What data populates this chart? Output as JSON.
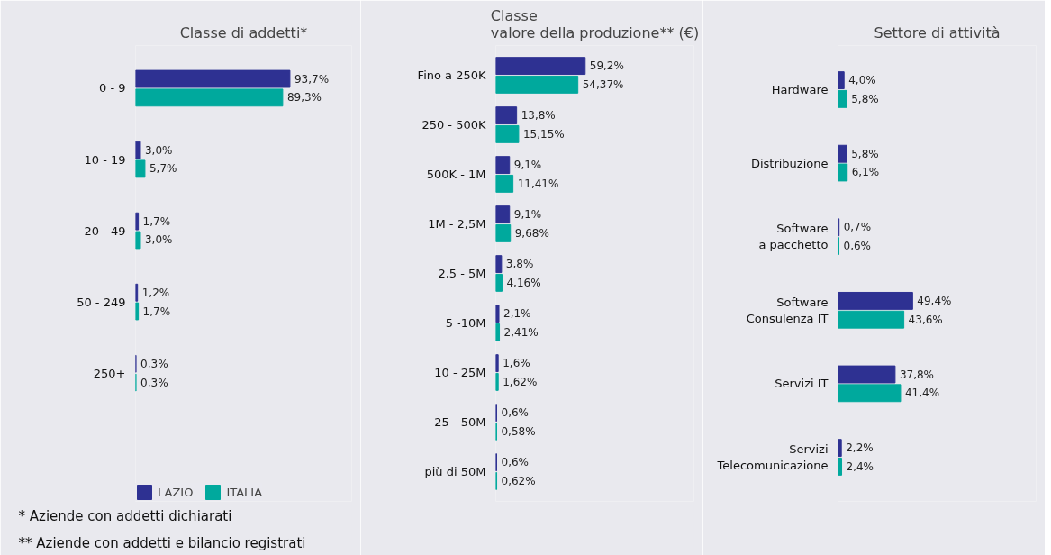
{
  "chart_data": [
    {
      "type": "bar",
      "orientation": "horizontal",
      "title": "Classe di addetti*",
      "categories": [
        "0 - 9",
        "10 - 19",
        "20 - 49",
        "50 - 249",
        "250+"
      ],
      "series": [
        {
          "name": "LAZIO",
          "color": "#2e3192",
          "values": [
            93.7,
            3.0,
            1.7,
            1.2,
            0.3
          ],
          "value_labels": [
            "93,7%",
            "3,0%",
            "1,7%",
            "1,2%",
            "0,3%"
          ]
        },
        {
          "name": "ITALIA",
          "color": "#00a99d",
          "values": [
            89.3,
            5.7,
            3.0,
            1.7,
            0.3
          ],
          "value_labels": [
            "89,3%",
            "5,7%",
            "3,0%",
            "1,7%",
            "0,3%"
          ]
        }
      ],
      "legend": "bottom left",
      "grid": false,
      "tick_labels": "y",
      "annotations": [
        "* Aziende con addetti dichiarati",
        "** Aziende con addetti e bilancio registrati"
      ]
    },
    {
      "type": "bar",
      "orientation": "horizontal",
      "title": "Classe\nvalore della produzione** (€)",
      "categories": [
        "Fino a 250K",
        "250 - 500K",
        "500K - 1M",
        "1M - 2,5M",
        "2,5 - 5M",
        "5 -10M",
        "10 - 25M",
        "25 - 50M",
        "più di 50M"
      ],
      "series": [
        {
          "color": "#2e3192",
          "values": [
            59.2,
            13.8,
            9.1,
            9.1,
            3.8,
            2.1,
            1.6,
            0.6,
            0.6
          ],
          "value_labels": [
            "59,2%",
            "13,8%",
            "9,1%",
            "9,1%",
            "3,8%",
            "2,1%",
            "1,6%",
            "0,6%",
            "0,6%"
          ]
        },
        {
          "color": "#00a99d",
          "values": [
            54.37,
            15.15,
            11.41,
            9.68,
            4.16,
            2.41,
            1.62,
            0.58,
            0.62
          ],
          "value_labels": [
            "54,37%",
            "15,15%",
            "11,41%",
            "9,68%",
            "4,16%",
            "2,41%",
            "1,62%",
            "0,58%",
            "0,62%"
          ]
        }
      ],
      "grid": false,
      "tick_labels": "y"
    },
    {
      "type": "bar",
      "orientation": "horizontal",
      "title": "Settore di attività",
      "categories": [
        "Hardware",
        "Distribuzione",
        "Software\na pacchetto",
        "Software\nConsulenza IT",
        "Servizi IT",
        "Servizi\nTelecomunicazione"
      ],
      "series": [
        {
          "color": "#2e3192",
          "values": [
            4.0,
            5.8,
            0.7,
            49.4,
            37.8,
            2.2
          ],
          "value_labels": [
            "4,0%",
            "5,8%",
            "0,7%",
            "49,4%",
            "37,8%",
            "2,2%"
          ]
        },
        {
          "color": "#00a99d",
          "values": [
            5.8,
            6.1,
            0.6,
            43.6,
            41.4,
            2.4
          ],
          "value_labels": [
            "5,8%",
            "6,1%",
            "0,6%",
            "43,6%",
            "41,4%",
            "2,4%"
          ]
        }
      ],
      "grid": false,
      "tick_labels": "y"
    }
  ]
}
